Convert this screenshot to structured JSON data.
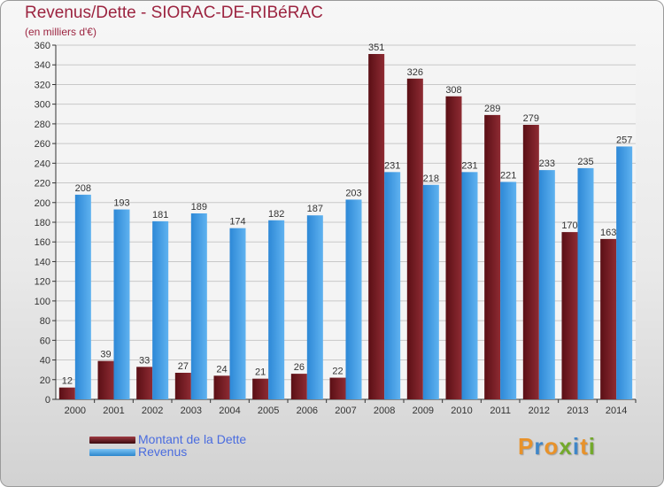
{
  "chart_data": {
    "type": "bar",
    "title": "Revenus/Dette - SIORAC-DE-RIBéRAC",
    "subtitle": "(en milliers d'€)",
    "categories": [
      "2000",
      "2001",
      "2002",
      "2003",
      "2004",
      "2005",
      "2006",
      "2007",
      "2008",
      "2009",
      "2010",
      "2011",
      "2012",
      "2013",
      "2014"
    ],
    "series": [
      {
        "name": "Montant de la Dette",
        "color": "#7a1b22",
        "values": [
          12,
          39,
          33,
          27,
          24,
          21,
          26,
          22,
          351,
          326,
          308,
          289,
          279,
          170,
          163
        ]
      },
      {
        "name": "Revenus",
        "color": "#3d9be3",
        "values": [
          208,
          193,
          181,
          189,
          174,
          182,
          187,
          203,
          231,
          218,
          231,
          221,
          233,
          235,
          257
        ]
      }
    ],
    "ylim": [
      0,
      360
    ],
    "yticks": [
      0,
      20,
      40,
      60,
      80,
      100,
      120,
      140,
      160,
      180,
      200,
      220,
      240,
      260,
      280,
      300,
      320,
      340,
      360
    ],
    "grid": true,
    "legend_position": "bottom-left"
  },
  "brand": {
    "letters": [
      "P",
      "r",
      "o",
      "x",
      "i",
      "t",
      "i"
    ],
    "colors": [
      "#e8922a",
      "#3f86c8",
      "#e8922a",
      "#73a92c",
      "#3f86c8",
      "#e8922a",
      "#73a92c"
    ]
  }
}
